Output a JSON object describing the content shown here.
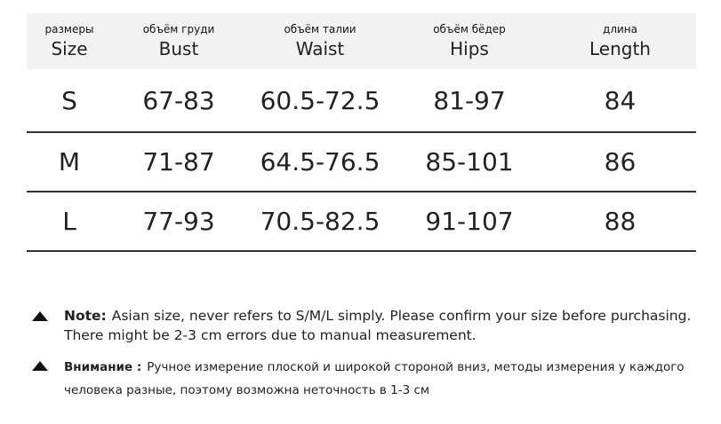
{
  "table": {
    "header": [
      {
        "ru": "размеры",
        "en": "Size"
      },
      {
        "ru": "объём груди",
        "en": "Bust"
      },
      {
        "ru": "объём талии",
        "en": "Waist"
      },
      {
        "ru": "объём бёдер",
        "en": "Hips"
      },
      {
        "ru": "длина",
        "en": "Length"
      }
    ],
    "rows": [
      [
        "S",
        "67-83",
        "60.5-72.5",
        "81-97",
        "84"
      ],
      [
        "M",
        "71-87",
        "64.5-76.5",
        "85-101",
        "86"
      ],
      [
        "L",
        "77-93",
        "70.5-82.5",
        "91-107",
        "88"
      ]
    ]
  },
  "notes": [
    {
      "label": "Note:",
      "text": "Asian size, never refers to S/M/L simply. Please confirm your size before purchasing. There might be 2-3 cm errors due to manual measurement."
    },
    {
      "label": "Внимание :",
      "text": "Ручное измерение плоской и широкой стороной вниз, методы измерения у каждого человека разные, поэтому возможна неточность в 1-3 см"
    }
  ]
}
